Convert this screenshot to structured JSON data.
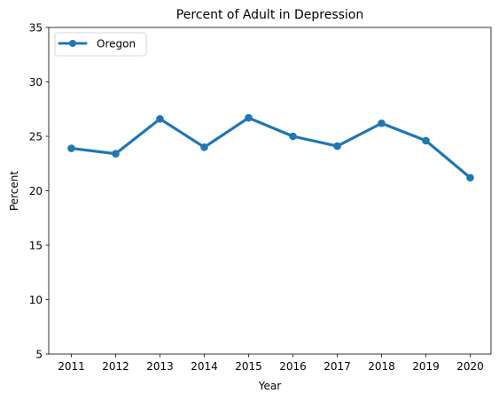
{
  "chart_data": {
    "type": "line",
    "title": "Percent of Adult in Depression",
    "xlabel": "Year",
    "ylabel": "Percent",
    "x": [
      "2011",
      "2012",
      "2013",
      "2014",
      "2015",
      "2016",
      "2017",
      "2018",
      "2019",
      "2020"
    ],
    "ylim": [
      5,
      35
    ],
    "yticks": [
      5,
      10,
      15,
      20,
      25,
      30,
      35
    ],
    "grid": false,
    "legend_position": "top-left",
    "series": [
      {
        "name": "Oregon",
        "color": "#1f77b4",
        "values": [
          23.9,
          23.4,
          26.6,
          24.0,
          26.7,
          25.0,
          24.1,
          26.2,
          24.6,
          21.2
        ]
      }
    ]
  }
}
